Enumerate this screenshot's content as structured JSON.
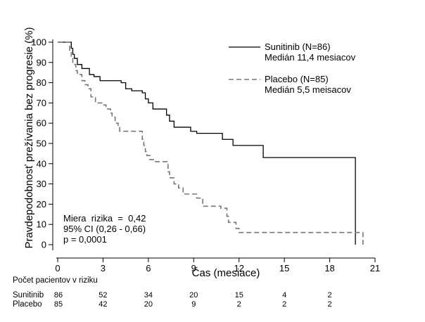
{
  "chart_data": {
    "type": "line",
    "ylabel": "Pravdepodobnosť prežívania bez progresie (%)",
    "xlabel": "Čas (mesiace)",
    "xlim": [
      0,
      21
    ],
    "ylim": [
      0,
      100
    ],
    "x_ticks": [
      "0",
      "3",
      "6",
      "9",
      "12",
      "15",
      "18",
      "21"
    ],
    "y_ticks": [
      "0",
      "10",
      "20",
      "30",
      "40",
      "50",
      "60",
      "70",
      "80",
      "90",
      "100"
    ],
    "legend_position": "top-right",
    "grid": false,
    "series": [
      {
        "name": "Sunitinib (N=86)",
        "legend_sub": "Medián 11,4 mesiacov",
        "line_style": "solid",
        "color": "#000000",
        "points": [
          [
            0,
            100
          ],
          [
            0.8,
            100
          ],
          [
            0.9,
            97
          ],
          [
            1.0,
            94
          ],
          [
            1.1,
            92
          ],
          [
            1.3,
            89
          ],
          [
            1.6,
            87
          ],
          [
            2.1,
            84
          ],
          [
            2.4,
            83
          ],
          [
            2.8,
            81
          ],
          [
            4.2,
            80
          ],
          [
            4.5,
            77
          ],
          [
            4.9,
            76
          ],
          [
            5.6,
            75
          ],
          [
            5.8,
            72
          ],
          [
            6.0,
            70
          ],
          [
            6.3,
            67
          ],
          [
            7.2,
            64
          ],
          [
            7.4,
            61
          ],
          [
            7.7,
            58
          ],
          [
            8.8,
            56
          ],
          [
            9.2,
            55
          ],
          [
            10.9,
            52
          ],
          [
            11.6,
            49
          ],
          [
            13.6,
            43
          ],
          [
            19.7,
            43
          ],
          [
            19.7,
            0
          ]
        ]
      },
      {
        "name": "Placebo (N=85)",
        "legend_sub": "Medián 5,5 meisacov",
        "line_style": "dashed",
        "color": "#777777",
        "points": [
          [
            0,
            100
          ],
          [
            0.6,
            100
          ],
          [
            0.8,
            96
          ],
          [
            0.9,
            92
          ],
          [
            1.0,
            89
          ],
          [
            1.2,
            86
          ],
          [
            1.3,
            84
          ],
          [
            1.6,
            81
          ],
          [
            1.8,
            79
          ],
          [
            2.0,
            77
          ],
          [
            2.2,
            73
          ],
          [
            2.5,
            70
          ],
          [
            3.0,
            69
          ],
          [
            3.2,
            67
          ],
          [
            3.5,
            65
          ],
          [
            3.6,
            63
          ],
          [
            3.8,
            60
          ],
          [
            4.0,
            58
          ],
          [
            4.1,
            56
          ],
          [
            5.4,
            56
          ],
          [
            5.6,
            52
          ],
          [
            5.7,
            49
          ],
          [
            5.8,
            46
          ],
          [
            5.9,
            44
          ],
          [
            6.1,
            42
          ],
          [
            6.4,
            41
          ],
          [
            7.2,
            41
          ],
          [
            7.3,
            36
          ],
          [
            7.4,
            33
          ],
          [
            7.7,
            30
          ],
          [
            8.0,
            28
          ],
          [
            8.3,
            25
          ],
          [
            9.2,
            23
          ],
          [
            9.6,
            19
          ],
          [
            10.8,
            18
          ],
          [
            11.2,
            14
          ],
          [
            11.3,
            11
          ],
          [
            11.8,
            8
          ],
          [
            12.0,
            6
          ],
          [
            20.2,
            6
          ],
          [
            20.2,
            0
          ]
        ]
      }
    ],
    "annotations": [
      "Miera  rizika  =  0,42",
      "95% CI (0,26 - 0,66)",
      "p = 0,0001"
    ]
  },
  "risk_table": {
    "title": "Počet pacientov v riziku",
    "times": [
      0,
      3,
      6,
      9,
      12,
      15,
      18
    ],
    "rows": [
      {
        "label": "Sunitinib",
        "values": [
          "86",
          "52",
          "34",
          "20",
          "15",
          "4",
          "2"
        ]
      },
      {
        "label": "Placebo",
        "values": [
          "85",
          "42",
          "20",
          "9",
          "2",
          "2",
          "2"
        ]
      }
    ]
  }
}
